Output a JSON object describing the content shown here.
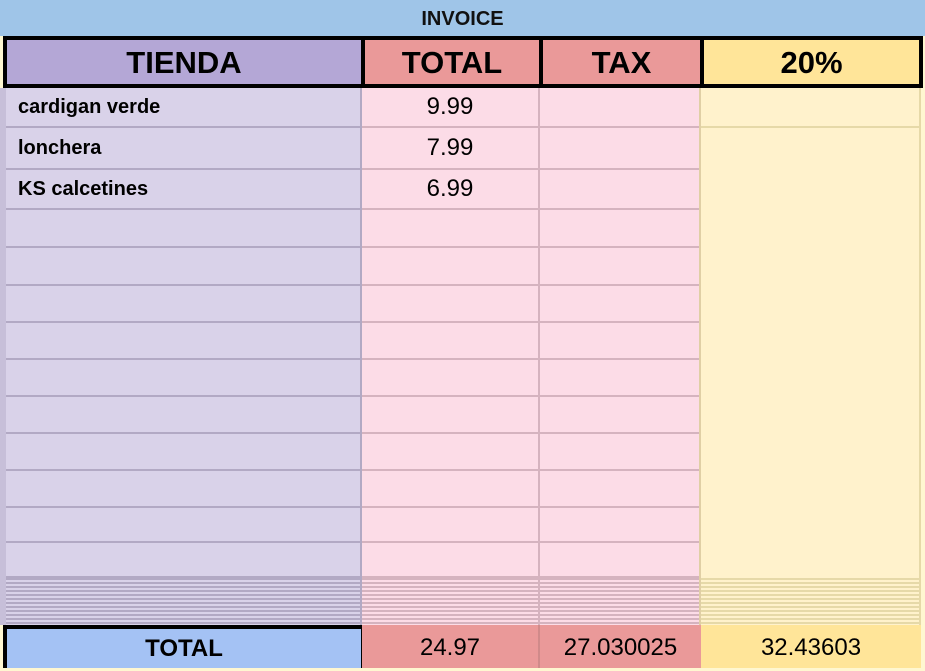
{
  "title": "INVOICE",
  "headers": {
    "tienda": "TIENDA",
    "total": "TOTAL",
    "tax": "TAX",
    "rate": "20%"
  },
  "rows": [
    {
      "tienda": "cardigan verde",
      "total": "9.99"
    },
    {
      "tienda": "lonchera",
      "total": "7.99"
    },
    {
      "tienda": "KS calcetines",
      "total": "6.99"
    },
    {
      "tienda": "",
      "total": ""
    },
    {
      "tienda": "",
      "total": ""
    },
    {
      "tienda": "",
      "total": ""
    },
    {
      "tienda": "",
      "total": ""
    },
    {
      "tienda": "",
      "total": ""
    },
    {
      "tienda": "",
      "total": ""
    },
    {
      "tienda": "",
      "total": ""
    },
    {
      "tienda": "",
      "total": ""
    },
    {
      "tienda": "",
      "total": ""
    },
    {
      "tienda": "",
      "total": ""
    }
  ],
  "footer": {
    "label": "TOTAL",
    "total": "24.97",
    "tax": "27.030025",
    "rate": "32.43603"
  },
  "colors": {
    "title": "#9fc5e8",
    "tienda_header": "#b4a7d6",
    "tienda_cell": "#d9d2e9",
    "total_header": "#ea9999",
    "total_cell": "#fcdce7",
    "rate_header": "#ffe599",
    "rate_cell": "#fff2cc",
    "footer_label": "#a4c2f4"
  }
}
